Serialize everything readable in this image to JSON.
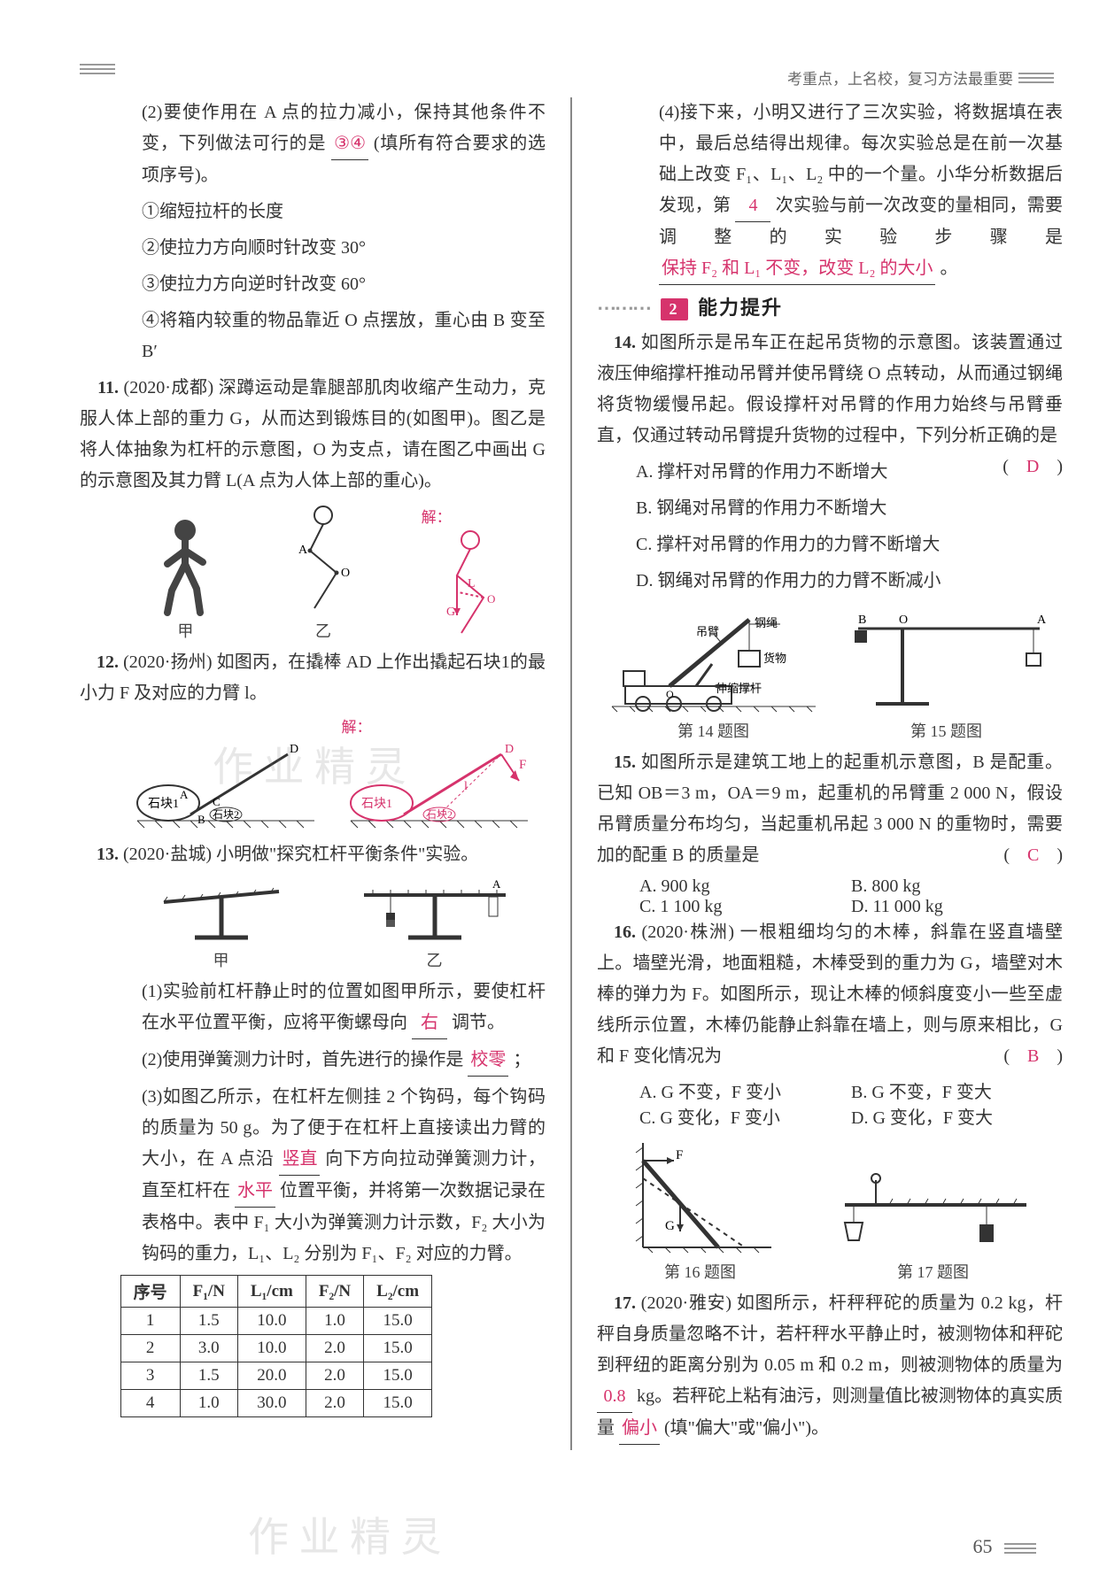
{
  "header_slogan": "考重点，上名校，复习方法最重要",
  "page_number": "65",
  "colors": {
    "answer": "#d6336c",
    "text": "#333333",
    "section_bg": "#d6336c",
    "section_fg": "#ffffff",
    "border": "#333333",
    "muted": "#666666"
  },
  "left": {
    "q10_2": {
      "stem": "(2)要使作用在 A 点的拉力减小，保持其他条件不变，下列做法可行的是",
      "blank": "③④",
      "tail": "(填所有符合要求的选项序号)。",
      "opts": [
        "①缩短拉杆的长度",
        "②使拉力方向顺时针改变 30°",
        "③使拉力方向逆时针改变 60°",
        "④将箱内较重的物品靠近 O 点摆放，重心由 B 变至 B′"
      ]
    },
    "q11": {
      "tag": "11.",
      "src": "(2020·成都)",
      "stem": "深蹲运动是靠腿部肌肉收缩产生动力，克服人体上部的重力 G，从而达到锻炼目的(如图甲)。图乙是将人体抽象为杠杆的示意图，O 为支点，请在图乙中画出 G 的示意图及其力臂 L(A 点为人体上部的重心)。",
      "sol_label": "解：",
      "cap_a": "甲",
      "cap_b": "乙"
    },
    "q12": {
      "tag": "12.",
      "src": "(2020·扬州)",
      "stem": "如图丙，在撬棒 AD 上作出撬起石块1的最小力 F 及对应的力臂 l。",
      "sol_label": "解：",
      "labels": {
        "stone1": "石块1",
        "stone2": "石块2"
      }
    },
    "q13": {
      "tag": "13.",
      "src": "(2020·盐城)",
      "stem": "小明做\"探究杠杆平衡条件\"实验。",
      "cap_a": "甲",
      "cap_b": "乙",
      "p1_a": "(1)实验前杠杆静止时的位置如图甲所示，要使杠杆在水平位置平衡，应将平衡螺母向",
      "p1_ans": "右",
      "p1_b": "调节。",
      "p2_a": "(2)使用弹簧测力计时，首先进行的操作是",
      "p2_ans": "校零",
      "p2_b": "；",
      "p3_a": "(3)如图乙所示，在杠杆左侧挂 2 个钩码，每个钩码的质量为 50 g。为了便于在杠杆上直接读出力臂的大小，在 A 点沿",
      "p3_ans1": "竖直",
      "p3_mid": "向下方向拉动弹簧测力计，直至杠杆在",
      "p3_ans2": "水平",
      "p3_b": "位置平衡，并将第一次数据记录在表格中。表中 F₁ 大小为弹簧测力计示数，F₂ 大小为钩码的重力，L₁、L₂ 分别为 F₁、F₂ 对应的力臂。"
    },
    "table": {
      "headers": [
        "序号",
        "F₁/N",
        "L₁/cm",
        "F₂/N",
        "L₂/cm"
      ],
      "rows": [
        [
          "1",
          "1.5",
          "10.0",
          "1.0",
          "15.0"
        ],
        [
          "2",
          "3.0",
          "10.0",
          "2.0",
          "15.0"
        ],
        [
          "3",
          "1.5",
          "20.0",
          "2.0",
          "15.0"
        ],
        [
          "4",
          "1.0",
          "30.0",
          "2.0",
          "15.0"
        ]
      ]
    }
  },
  "right": {
    "q13_4": {
      "a": "(4)接下来，小明又进行了三次实验，将数据填在表中，最后总结得出规律。每次实验总是在前一次基础上改变 F₁、L₁、L₂ 中的一个量。小华分析数据后发现，第",
      "ans1": "4",
      "mid": "次实验与前一次改变的量相同，需要调整的实验步骤是",
      "ans2": "保持 F₂ 和 L₁ 不变，改变 L₂ 的大小",
      "b": "。"
    },
    "section": {
      "num": "2",
      "title": "能力提升"
    },
    "q14": {
      "tag": "14.",
      "stem": "如图所示是吊车正在起吊货物的示意图。该装置通过液压伸缩撑杆推动吊臂并使吊臂绕 O 点转动，从而通过钢绳将货物缓慢吊起。假设撑杆对吊臂的作用力始终与吊臂垂直，仅通过转动吊臂提升货物的过程中，下列分析正确的是",
      "paren_ans": "D",
      "opts": [
        "A. 撑杆对吊臂的作用力不断增大",
        "B. 钢绳对吊臂的作用力不断增大",
        "C. 撑杆对吊臂的作用力的力臂不断增大",
        "D. 钢绳对吊臂的作用力的力臂不断减小"
      ],
      "labels": {
        "boom": "吊臂",
        "rope": "钢绳",
        "cargo": "货物",
        "strut": "伸缩撑杆"
      },
      "cap": "第 14 题图"
    },
    "q15": {
      "tag": "15.",
      "stem": "如图所示是建筑工地上的起重机示意图，B 是配重。已知 OB＝3 m，OA＝9 m，起重机的吊臂重 2 000 N，假设吊臂质量分布均匀，当起重机吊起 3 000 N 的重物时，需要加的配重 B 的质量是",
      "paren_ans": "C",
      "opts": [
        "A. 900 kg",
        "B. 800 kg",
        "C. 1 100 kg",
        "D. 11 000 kg"
      ],
      "cap": "第 15 题图"
    },
    "q16": {
      "tag": "16.",
      "src": "(2020·株洲)",
      "stem": "一根粗细均匀的木棒，斜靠在竖直墙壁上。墙壁光滑，地面粗糙，木棒受到的重力为 G，墙壁对木棒的弹力为 F。如图所示，现让木棒的倾斜度变小一些至虚线所示位置，木棒仍能静止斜靠在墙上，则与原来相比，G 和 F 变化情况为",
      "paren_ans": "B",
      "opts": [
        "A. G 不变，F 变小",
        "B. G 不变，F 变大",
        "C. G 变化，F 变小",
        "D. G 变化，F 变大"
      ],
      "cap": "第 16 题图"
    },
    "q17": {
      "tag": "17.",
      "src": "(2020·雅安)",
      "stem_a": "如图所示，杆秤秤砣的质量为 0.2 kg，杆秤自身质量忽略不计，若杆秤水平静止时，被测物体和秤砣到秤纽的距离分别为 0.05 m 和 0.2 m，则被测物体的质量为",
      "ans1": "0.8",
      "mid": "kg。若秤砣上粘有油污，则测量值比被测物体的真实质量",
      "ans2": "偏小",
      "stem_b": "(填\"偏大\"或\"偏小\")。",
      "cap": "第 17 题图"
    }
  }
}
